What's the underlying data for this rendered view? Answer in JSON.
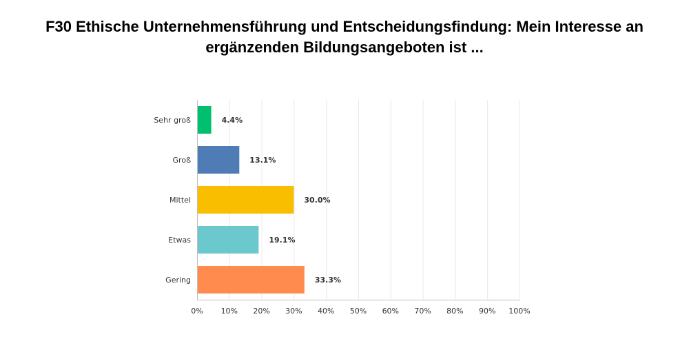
{
  "chart_data": {
    "type": "bar",
    "orientation": "horizontal",
    "title": "F30 Ethische Unternehmensführung und Entscheidungsfindung: Mein Interesse an ergänzenden Bildungsangeboten ist ...",
    "categories": [
      "Sehr groß",
      "Groß",
      "Mittel",
      "Etwas",
      "Gering"
    ],
    "values": [
      4.4,
      13.1,
      30.0,
      19.1,
      33.3
    ],
    "value_labels": [
      "4.4%",
      "13.1%",
      "30.0%",
      "19.1%",
      "33.3%"
    ],
    "colors": [
      "#00bf6f",
      "#507cb6",
      "#f9be00",
      "#6bc8cd",
      "#ff8b4f"
    ],
    "xlim": [
      0,
      100
    ],
    "x_ticks": [
      0,
      10,
      20,
      30,
      40,
      50,
      60,
      70,
      80,
      90,
      100
    ],
    "x_tick_labels": [
      "0%",
      "10%",
      "20%",
      "30%",
      "40%",
      "50%",
      "60%",
      "70%",
      "80%",
      "90%",
      "100%"
    ],
    "xlabel": "",
    "ylabel": "",
    "grid": true,
    "legend": "none",
    "grid_color": "#e8e8e8",
    "axis_color": "#bfbfbf"
  }
}
